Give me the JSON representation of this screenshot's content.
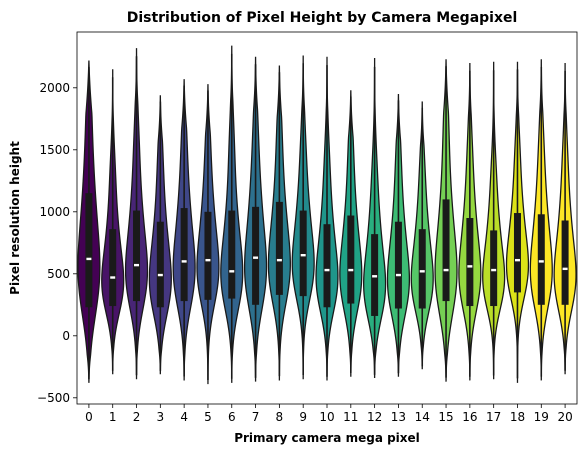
{
  "chart_data": {
    "type": "violin",
    "title": "Distribution of Pixel Height by Camera Megapixel",
    "xlabel": "Primary camera mega pixel",
    "ylabel": "Pixel resolution height",
    "ylim": [
      -550,
      2450
    ],
    "yticks": [
      -500,
      0,
      500,
      1000,
      1500,
      2000
    ],
    "categories": [
      "0",
      "1",
      "2",
      "3",
      "4",
      "5",
      "6",
      "7",
      "8",
      "9",
      "10",
      "11",
      "12",
      "13",
      "14",
      "15",
      "16",
      "17",
      "18",
      "19",
      "20"
    ],
    "colors": [
      "#440154",
      "#481467",
      "#482576",
      "#453781",
      "#3f4788",
      "#39558c",
      "#32648e",
      "#2d718e",
      "#287d8e",
      "#238a8d",
      "#1f968b",
      "#20a386",
      "#29af7f",
      "#3dbc74",
      "#56c667",
      "#75d054",
      "#95d840",
      "#bade28",
      "#dde318",
      "#fde725",
      "#fde725"
    ],
    "stats": [
      {
        "min": -380,
        "q1": 230,
        "median": 620,
        "q3": 1150,
        "max": 2220
      },
      {
        "min": -310,
        "q1": 240,
        "median": 470,
        "q3": 860,
        "max": 2150
      },
      {
        "min": -350,
        "q1": 280,
        "median": 570,
        "q3": 1010,
        "max": 2320
      },
      {
        "min": -310,
        "q1": 230,
        "median": 490,
        "q3": 920,
        "max": 1940
      },
      {
        "min": -360,
        "q1": 280,
        "median": 600,
        "q3": 1030,
        "max": 2070
      },
      {
        "min": -390,
        "q1": 290,
        "median": 610,
        "q3": 1000,
        "max": 2030
      },
      {
        "min": -380,
        "q1": 300,
        "median": 520,
        "q3": 1010,
        "max": 2340
      },
      {
        "min": -370,
        "q1": 250,
        "median": 630,
        "q3": 1040,
        "max": 2250
      },
      {
        "min": -360,
        "q1": 330,
        "median": 610,
        "q3": 1080,
        "max": 2180
      },
      {
        "min": -350,
        "q1": 320,
        "median": 650,
        "q3": 1010,
        "max": 2260
      },
      {
        "min": -360,
        "q1": 230,
        "median": 530,
        "q3": 900,
        "max": 2250
      },
      {
        "min": -330,
        "q1": 260,
        "median": 530,
        "q3": 970,
        "max": 1980
      },
      {
        "min": -340,
        "q1": 160,
        "median": 480,
        "q3": 820,
        "max": 2240
      },
      {
        "min": -330,
        "q1": 220,
        "median": 490,
        "q3": 920,
        "max": 1950
      },
      {
        "min": -270,
        "q1": 220,
        "median": 520,
        "q3": 860,
        "max": 1890
      },
      {
        "min": -370,
        "q1": 280,
        "median": 530,
        "q3": 1100,
        "max": 2230
      },
      {
        "min": -360,
        "q1": 240,
        "median": 560,
        "q3": 950,
        "max": 2200
      },
      {
        "min": -350,
        "q1": 240,
        "median": 530,
        "q3": 850,
        "max": 2210
      },
      {
        "min": -380,
        "q1": 350,
        "median": 610,
        "q3": 990,
        "max": 2210
      },
      {
        "min": -360,
        "q1": 250,
        "median": 600,
        "q3": 980,
        "max": 2230
      },
      {
        "min": -310,
        "q1": 250,
        "median": 540,
        "q3": 930,
        "max": 2200
      }
    ]
  }
}
